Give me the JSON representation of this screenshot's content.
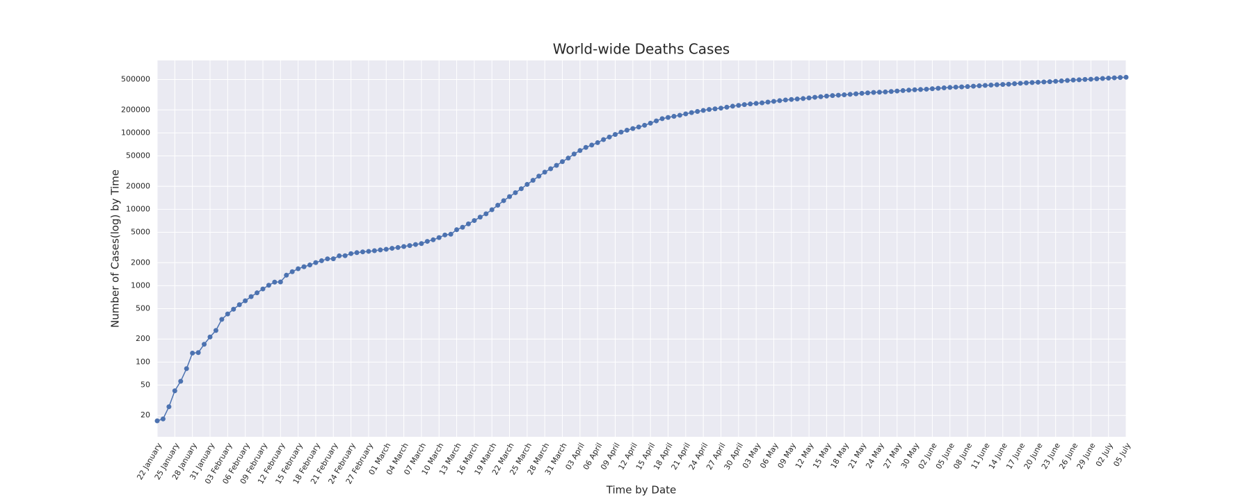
{
  "chart_data": {
    "type": "line",
    "title": "World-wide Deaths Cases",
    "xlabel": "Time by Date",
    "ylabel": "Number of Cases(log) by Time",
    "categories": [
      "22 January",
      null,
      null,
      "25 January",
      null,
      null,
      "28 January",
      null,
      null,
      "31 January",
      null,
      null,
      "03 February",
      null,
      null,
      "06 February",
      null,
      null,
      "09 February",
      null,
      null,
      "12 February",
      null,
      null,
      "15 February",
      null,
      null,
      "18 February",
      null,
      null,
      "21 February",
      null,
      null,
      "24 February",
      null,
      null,
      "27 February",
      null,
      null,
      "01 March",
      null,
      null,
      "04 March",
      null,
      null,
      "07 March",
      null,
      null,
      "10 March",
      null,
      null,
      "13 March",
      null,
      null,
      "16 March",
      null,
      null,
      "19 March",
      null,
      null,
      "22 March",
      null,
      null,
      "25 March",
      null,
      null,
      "28 March",
      null,
      null,
      "31 March",
      null,
      null,
      "03 April",
      null,
      null,
      "06 April",
      null,
      null,
      "09 April",
      null,
      null,
      "12 April",
      null,
      null,
      "15 April",
      null,
      null,
      "18 April",
      null,
      null,
      "21 April",
      null,
      null,
      "24 April",
      null,
      null,
      "27 April",
      null,
      null,
      "30 April",
      null,
      null,
      "03 May",
      null,
      null,
      "06 May",
      null,
      null,
      "09 May",
      null,
      null,
      "12 May",
      null,
      null,
      "15 May",
      null,
      null,
      "18 May",
      null,
      null,
      "21 May",
      null,
      null,
      "24 May",
      null,
      null,
      "27 May",
      null,
      null,
      "30 May",
      null,
      null,
      "02 June",
      null,
      null,
      "05 June",
      null,
      null,
      "08 June",
      null,
      null,
      "11 June",
      null,
      null,
      "14 June",
      null,
      null,
      "17 June",
      null,
      null,
      "20 June",
      null,
      null,
      "23 June",
      null,
      null,
      "26 June",
      null,
      null,
      "29 June",
      null,
      null,
      "02 July",
      null,
      null,
      "05 July"
    ],
    "values": [
      17,
      18,
      26,
      42,
      56,
      82,
      131,
      133,
      171,
      213,
      259,
      362,
      426,
      492,
      564,
      634,
      719,
      806,
      906,
      1013,
      1113,
      1118,
      1371,
      1523,
      1666,
      1770,
      1868,
      2007,
      2122,
      2247,
      2251,
      2458,
      2469,
      2629,
      2708,
      2770,
      2814,
      2872,
      2941,
      2996,
      3085,
      3160,
      3254,
      3348,
      3460,
      3558,
      3802,
      3988,
      4262,
      4615,
      4720,
      5404,
      5819,
      6440,
      7126,
      7905,
      8733,
      9867,
      11299,
      12973,
      14651,
      16505,
      18625,
      21181,
      23970,
      27198,
      30652,
      33925,
      37582,
      42107,
      46809,
      52983,
      58787,
      64606,
      69374,
      74565,
      81865,
      88338,
      95455,
      102525,
      108503,
      114090,
      119481,
      125983,
      134176,
      143800,
      153822,
      159510,
      165044,
      170423,
      177640,
      184681,
      191052,
      197245,
      202846,
      206544,
      211167,
      217153,
      223814,
      229335,
      234797,
      239637,
      243451,
      247615,
      253358,
      259027,
      264733,
      270070,
      274429,
      278233,
      281847,
      287316,
      292960,
      298159,
      303360,
      308183,
      311906,
      315354,
      320132,
      324960,
      329944,
      334616,
      338651,
      341711,
      343860,
      348545,
      353664,
      358472,
      363336,
      367405,
      370451,
      373606,
      379014,
      384213,
      389364,
      393895,
      397879,
      400855,
      404309,
      409224,
      414152,
      419094,
      423453,
      427686,
      431005,
      434557,
      441324,
      446457,
      451594,
      456319,
      460607,
      464532,
      468777,
      474118,
      479382,
      485998,
      492611,
      496824,
      501364,
      504846,
      511175,
      516334,
      521388,
      526406,
      531237,
      535065
    ],
    "color": "#4c72b0",
    "log_scale": true,
    "grid": true,
    "ylim": [
      10.5,
      890000
    ],
    "yticks": [
      20,
      50,
      100,
      200,
      500,
      1000,
      2000,
      5000,
      10000,
      20000,
      50000,
      100000,
      200000,
      500000
    ]
  }
}
